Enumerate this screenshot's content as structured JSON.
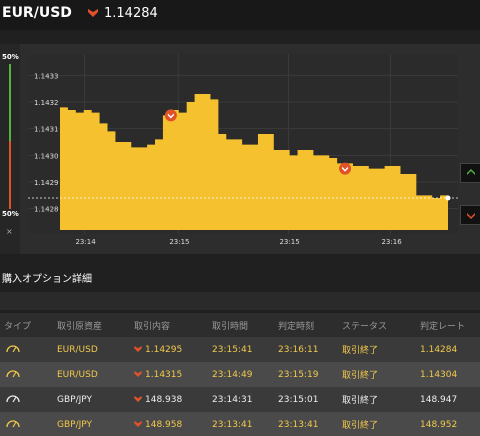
{
  "header": {
    "pair": "EUR/USD",
    "price": "1.14284",
    "direction_icon": "down-arrow-icon"
  },
  "colors": {
    "accent_gold": "#f5c12e",
    "down_red": "#e0532a",
    "up_green": "#56b23c"
  },
  "gauge": {
    "top_label": "50%",
    "bottom_label": "50%",
    "close_label": "×",
    "up_fraction": 0.5,
    "down_fraction": 0.5
  },
  "chart_data": {
    "type": "area",
    "title": "",
    "xlabel": "",
    "ylabel": "",
    "y_tick_labels": [
      "1.1433",
      "1.1432",
      "1.1431",
      "1.1430",
      "1.1429",
      "1.1428"
    ],
    "x_tick_labels": [
      "23:14",
      "23:15",
      "23:15",
      "23:16"
    ],
    "ylim": [
      1.14272,
      1.14338
    ],
    "current_price": 1.14284,
    "series": [
      {
        "values": [
          1.14318,
          1.14317,
          1.14316,
          1.14317,
          1.14316,
          1.14312,
          1.14309,
          1.14305,
          1.14305,
          1.14303,
          1.14303,
          1.14304,
          1.14306,
          1.14315,
          1.14317,
          1.14316,
          1.1432,
          1.14323,
          1.14323,
          1.14321,
          1.14308,
          1.14306,
          1.14306,
          1.14304,
          1.14304,
          1.14308,
          1.14308,
          1.14302,
          1.14302,
          1.143,
          1.14302,
          1.14302,
          1.143,
          1.143,
          1.14299,
          1.14297,
          1.14297,
          1.14296,
          1.14296,
          1.14295,
          1.14295,
          1.14296,
          1.14296,
          1.14293,
          1.14293,
          1.14285,
          1.14285,
          1.14284,
          1.14285,
          1.14284
        ]
      }
    ],
    "markers": [
      {
        "index": 14,
        "price": 1.14315
      },
      {
        "index": 36,
        "price": 1.14295
      }
    ]
  },
  "details": {
    "title": "購入オプション詳細",
    "columns": [
      "タイプ",
      "取引原資産",
      "取引内容",
      "取引時間",
      "判定時刻",
      "ステータス",
      "判定レート"
    ],
    "rows": [
      {
        "asset": "EUR/USD",
        "rate": "1.14295",
        "trade_time": "23:15:41",
        "judge_time": "23:16:11",
        "status": "取引終了",
        "judge_rate": "1.14284"
      },
      {
        "asset": "EUR/USD",
        "rate": "1.14315",
        "trade_time": "23:14:49",
        "judge_time": "23:15:19",
        "status": "取引終了",
        "judge_rate": "1.14304"
      },
      {
        "asset": "GBP/JPY",
        "rate": "148.938",
        "trade_time": "23:14:31",
        "judge_time": "23:15:01",
        "status": "取引終了",
        "judge_rate": "148.947"
      },
      {
        "asset": "GBP/JPY",
        "rate": "148.958",
        "trade_time": "23:13:41",
        "judge_time": "23:13:41",
        "status": "取引終了",
        "judge_rate": "148.952"
      }
    ]
  }
}
